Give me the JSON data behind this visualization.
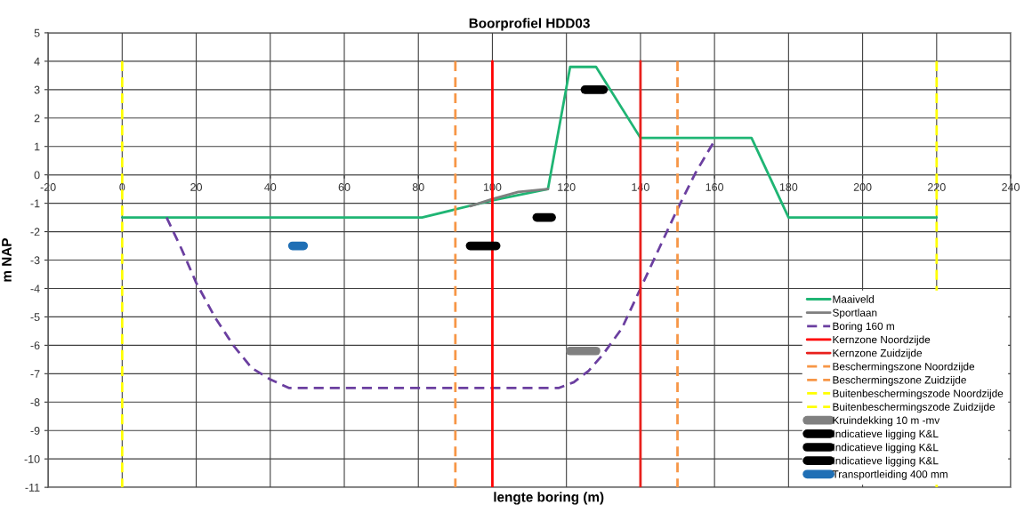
{
  "chart_data": {
    "type": "line",
    "title": "Boorprofiel HDD03",
    "xlabel": "lengte boring (m)",
    "ylabel": "m NAP",
    "xlim": [
      -20,
      240
    ],
    "xticks": [
      -20,
      0,
      20,
      40,
      60,
      80,
      100,
      120,
      140,
      160,
      180,
      200,
      220,
      240
    ],
    "ylim": [
      -11,
      5
    ],
    "yticks": [
      -11,
      -10,
      -9,
      -8,
      -7,
      -6,
      -5,
      -4,
      -3,
      -2,
      -1,
      0,
      1,
      2,
      3,
      4,
      5
    ],
    "grid": true,
    "legend": "bottom right",
    "marker": "none",
    "series": [
      {
        "name": "Maaiveld",
        "color": "#1fb574",
        "line_style": "solid",
        "x": [
          0,
          81,
          100,
          115,
          121,
          128,
          140,
          170,
          180,
          220
        ],
        "values": [
          -1.5,
          -1.5,
          -0.9,
          -0.5,
          3.8,
          3.8,
          1.3,
          1.3,
          -1.5,
          -1.5
        ]
      },
      {
        "name": "Sportlaan",
        "color": "#7f7f7f",
        "line_style": "solid",
        "x": [
          94,
          100,
          107,
          115
        ],
        "values": [
          -1.1,
          -0.85,
          -0.6,
          -0.5
        ]
      },
      {
        "name": "Boring 160 m",
        "color": "#6b3fa0",
        "line_style": "dashed",
        "x": [
          12,
          16,
          20,
          25,
          30,
          35,
          40,
          45,
          118,
          122,
          126,
          130,
          135,
          140,
          145,
          150,
          155,
          160
        ],
        "values": [
          -1.5,
          -2.6,
          -3.8,
          -5,
          -6,
          -6.8,
          -7.2,
          -7.5,
          -7.5,
          -7.3,
          -6.9,
          -6.3,
          -5.4,
          -4.0,
          -2.6,
          -1.2,
          0.1,
          1.2
        ]
      },
      {
        "name": "Kernzone Noordzijde",
        "color": "#ff0000",
        "line_style": "solid",
        "x": [
          100,
          100
        ],
        "values": [
          4,
          -11
        ]
      },
      {
        "name": "Kernzone Zuidzijde",
        "color": "#e8201c",
        "line_style": "solid",
        "x": [
          140,
          140
        ],
        "values": [
          4,
          -11
        ]
      },
      {
        "name": "Beschermingszone Noordzijde",
        "color": "#f79646",
        "line_style": "dashed",
        "x": [
          90,
          90
        ],
        "values": [
          4,
          -11
        ]
      },
      {
        "name": "Beschermingszone Zuidzijde",
        "color": "#f79646",
        "line_style": "dashed",
        "x": [
          150,
          150
        ],
        "values": [
          4,
          -11
        ]
      },
      {
        "name": "Buitenbeschermingszode Noordzijde",
        "color": "#ffff00",
        "line_style": "dashed",
        "x": [
          0,
          0
        ],
        "values": [
          4,
          -11
        ]
      },
      {
        "name": "Buitenbeschermingszode Zuidzijde",
        "color": "#ffff00",
        "line_style": "dashed",
        "x": [
          220,
          220
        ],
        "values": [
          4,
          -11
        ]
      },
      {
        "name": "Kruindekking 10 m -mv",
        "color": "#808080",
        "line_style": "solid",
        "x": [
          121,
          128
        ],
        "values": [
          -6.2,
          -6.2
        ]
      },
      {
        "name": "Indicatieve ligging K&L",
        "color": "#000000",
        "line_style": "solid",
        "x": [
          94,
          101
        ],
        "values": [
          -2.5,
          -2.5
        ]
      },
      {
        "name": "Indicatieve ligging K&L",
        "color": "#000000",
        "line_style": "solid",
        "x": [
          112,
          116
        ],
        "values": [
          -1.5,
          -1.5
        ]
      },
      {
        "name": "Indicatieve ligging K&L",
        "color": "#000000",
        "line_style": "solid",
        "x": [
          125,
          130
        ],
        "values": [
          3,
          3
        ]
      },
      {
        "name": "Transportleiding 400 mm",
        "color": "#1f6fb5",
        "line_style": "solid",
        "x": [
          46,
          49
        ],
        "values": [
          -2.5,
          -2.5
        ]
      }
    ]
  }
}
